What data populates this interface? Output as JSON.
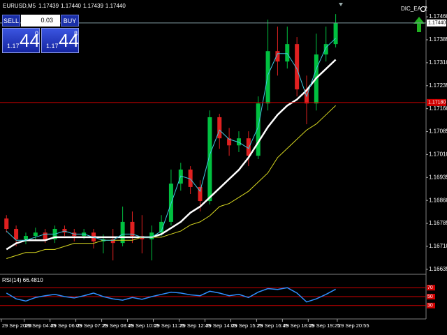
{
  "expert": "DIC_EA_2",
  "trade_panel": {
    "sell": "SELL",
    "buy": "BUY",
    "lot": "0.03",
    "sell_price": {
      "big": "1.17",
      "pips": "44",
      "point": "0"
    },
    "buy_price": {
      "big": "1.17",
      "pips": "44",
      "point": "8"
    }
  },
  "chart_data": [
    {
      "type": "candlestick",
      "title": "EURUSD,M5",
      "quote": [
        "1.17439",
        "1.17440",
        "1.17439",
        "1.17440"
      ],
      "up_color": "#00c040",
      "down_color": "#e02020",
      "x": [
        230,
        260,
        290,
        320,
        350,
        380,
        410,
        440,
        470,
        500,
        530,
        560,
        590,
        620,
        650,
        680,
        710,
        740,
        770,
        800,
        830,
        860,
        890,
        920,
        950,
        980,
        1010,
        1040,
        1070,
        1100,
        1130,
        1160,
        1190,
        1220,
        1250
      ],
      "open": [
        1.16801,
        1.16767,
        1.16733,
        1.16744,
        1.16755,
        1.16733,
        1.16767,
        1.16755,
        1.16744,
        1.16755,
        1.16726,
        1.16733,
        1.16721,
        1.1679,
        1.16744,
        1.16733,
        1.16755,
        1.1679,
        1.16915,
        1.16961,
        1.16904,
        1.16858,
        1.17132,
        1.17063,
        1.1704,
        1.17063,
        1.17006,
        1.17177,
        1.17348,
        1.17314,
        1.17371,
        1.17223,
        1.17177,
        1.17337,
        1.17371
      ],
      "high": [
        1.16812,
        1.16778,
        1.16755,
        1.16771,
        1.16767,
        1.16778,
        1.16778,
        1.16767,
        1.16767,
        1.16767,
        1.16749,
        1.16767,
        1.1684,
        1.16824,
        1.16812,
        1.16778,
        1.16812,
        1.16961,
        1.16983,
        1.16972,
        1.16926,
        1.17154,
        1.17143,
        1.17097,
        1.17086,
        1.17086,
        1.172,
        1.17451,
        1.17428,
        1.17428,
        1.17394,
        1.17268,
        1.17405,
        1.17428,
        1.17469
      ],
      "low": [
        1.16755,
        1.1671,
        1.16717,
        1.16733,
        1.16721,
        1.16721,
        1.16744,
        1.16726,
        1.16733,
        1.16703,
        1.16687,
        1.16664,
        1.1671,
        1.16721,
        1.16687,
        1.16664,
        1.16744,
        1.16778,
        1.16892,
        1.16881,
        1.16824,
        1.16847,
        1.17029,
        1.17006,
        1.17018,
        1.16972,
        1.16995,
        1.17154,
        1.17268,
        1.17291,
        1.172,
        1.17109,
        1.17154,
        1.17314,
        1.1736
      ],
      "close": [
        1.16767,
        1.16733,
        1.16744,
        1.16755,
        1.16733,
        1.16767,
        1.16755,
        1.16744,
        1.16755,
        1.16726,
        1.16733,
        1.16721,
        1.1679,
        1.16744,
        1.16733,
        1.16755,
        1.1679,
        1.16915,
        1.16961,
        1.16904,
        1.16858,
        1.17132,
        1.17063,
        1.1704,
        1.17063,
        1.17006,
        1.17177,
        1.17348,
        1.17314,
        1.17371,
        1.17223,
        1.17177,
        1.17337,
        1.17371,
        1.1744
      ],
      "series": [
        {
          "color": "#ffffff",
          "width": 2.5,
          "values": [
            1.167,
            1.1672,
            1.1673,
            1.1673,
            1.1673,
            1.1674,
            1.1674,
            1.1674,
            1.1674,
            1.1674,
            1.1674,
            1.1674,
            1.1674,
            1.1674,
            1.1674,
            1.1674,
            1.1675,
            1.1677,
            1.1679,
            1.1682,
            1.1684,
            1.1687,
            1.169,
            1.1693,
            1.1696,
            1.17,
            1.1705,
            1.171,
            1.1714,
            1.1717,
            1.1719,
            1.1722,
            1.1726,
            1.1729,
            1.1732
          ]
        },
        {
          "color": "#d8d820",
          "width": 1,
          "values": [
            1.1667,
            1.1668,
            1.1669,
            1.1669,
            1.167,
            1.167,
            1.1671,
            1.1672,
            1.1672,
            1.1672,
            1.1673,
            1.1673,
            1.1673,
            1.1673,
            1.1674,
            1.1674,
            1.1674,
            1.1675,
            1.1676,
            1.1678,
            1.1679,
            1.1681,
            1.1684,
            1.1685,
            1.1687,
            1.1689,
            1.1692,
            1.1695,
            1.17,
            1.1703,
            1.1706,
            1.1709,
            1.1711,
            1.1714,
            1.1717
          ]
        },
        {
          "color": "#40c8e0",
          "width": 1,
          "values": [
            1.1676,
            1.1673,
            1.1673,
            1.1674,
            1.1675,
            1.1675,
            1.1676,
            1.1675,
            1.1675,
            1.1674,
            1.1673,
            1.1673,
            1.1675,
            1.1675,
            1.1674,
            1.1674,
            1.1676,
            1.1685,
            1.1694,
            1.1693,
            1.1689,
            1.1701,
            1.1709,
            1.1706,
            1.1705,
            1.1703,
            1.171,
            1.1727,
            1.1734,
            1.1734,
            1.1729,
            1.172,
            1.1729,
            1.1736,
            1.1739
          ]
        }
      ],
      "hlines": [
        {
          "value": 1.1744,
          "label": "1.17440",
          "color": "#7f9aa0",
          "label_fill": "#ffffff",
          "label_color": "#000000"
        },
        {
          "value": 1.1718,
          "label": "1.17180",
          "color": "#d00000",
          "label_fill": "#d00000",
          "label_color": "#ffffff"
        }
      ],
      "xlim": [
        210,
        1530
      ],
      "xticks": [
        {
          "value": 214,
          "label": "29 Sep 2020"
        },
        {
          "value": 285,
          "label": "29 Sep 04:45"
        },
        {
          "value": 365,
          "label": "29 Sep 06:05"
        },
        {
          "value": 445,
          "label": "29 Sep 07:25"
        },
        {
          "value": 525,
          "label": "29 Sep 08:45"
        },
        {
          "value": 605,
          "label": "29 Sep 10:05"
        },
        {
          "value": 685,
          "label": "29 Sep 11:25"
        },
        {
          "value": 765,
          "label": "29 Sep 12:45"
        },
        {
          "value": 845,
          "label": "29 Sep 14:05"
        },
        {
          "value": 925,
          "label": "29 Sep 15:25"
        },
        {
          "value": 1005,
          "label": "29 Sep 16:45"
        },
        {
          "value": 1085,
          "label": "29 Sep 18:05"
        },
        {
          "value": 1165,
          "label": "29 Sep 19:25"
        },
        {
          "value": 1255,
          "label": "29 Sep 20:55"
        }
      ],
      "ylim": [
        1.16621,
        1.17515
      ],
      "yticks": [
        {
          "value": 1.1746,
          "label": "1.17460"
        },
        1.17385,
        {
          "value": 1.1731,
          "label": "1.17310"
        },
        1.17235,
        {
          "value": 1.1716,
          "label": "1.17160"
        },
        1.17085,
        {
          "value": 1.1701,
          "label": "1.17010"
        },
        1.16935,
        {
          "value": 1.1686,
          "label": "1.16860"
        },
        1.16785,
        {
          "value": 1.1671,
          "label": "1.16710"
        },
        1.16635
      ]
    },
    {
      "type": "line",
      "title": "RSI(14) 66.4810",
      "color": "#2f8fff",
      "level_color": "#d00000",
      "x": [
        230,
        260,
        290,
        320,
        350,
        380,
        410,
        440,
        470,
        500,
        530,
        560,
        590,
        620,
        650,
        680,
        710,
        740,
        770,
        800,
        830,
        860,
        890,
        920,
        950,
        980,
        1010,
        1040,
        1070,
        1100,
        1130,
        1160,
        1190,
        1220,
        1250
      ],
      "values": [
        58,
        45,
        40,
        48,
        52,
        55,
        50,
        47,
        52,
        58,
        50,
        45,
        42,
        48,
        44,
        50,
        55,
        60,
        58,
        54,
        52,
        62,
        58,
        52,
        55,
        48,
        60,
        68,
        66,
        70,
        58,
        38,
        45,
        55,
        66.481
      ],
      "xlim": [
        210,
        1530
      ],
      "ylim": [
        0,
        100
      ],
      "yticks": [
        70,
        50,
        30
      ]
    }
  ]
}
